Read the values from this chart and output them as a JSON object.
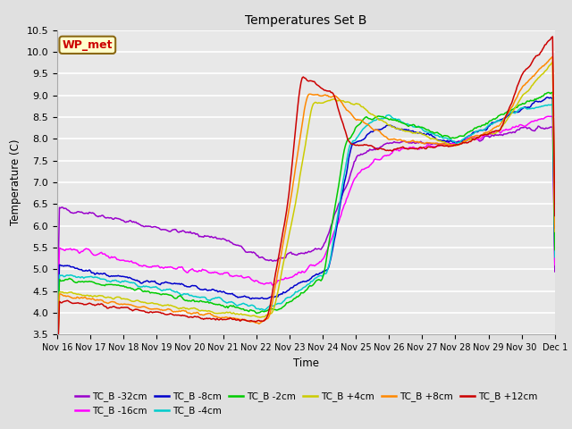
{
  "title": "Temperatures Set B",
  "xlabel": "Time",
  "ylabel": "Temperature (C)",
  "ylim": [
    3.5,
    10.5
  ],
  "yticks": [
    3.5,
    4.0,
    4.5,
    5.0,
    5.5,
    6.0,
    6.5,
    7.0,
    7.5,
    8.0,
    8.5,
    9.0,
    9.5,
    10.0,
    10.5
  ],
  "background_color": "#e0e0e0",
  "plot_bg_color": "#e8e8e8",
  "grid_color": "#ffffff",
  "wp_met_label": "WP_met",
  "wp_met_bg": "#ffffcc",
  "wp_met_border": "#8b6914",
  "wp_met_text": "#cc0000",
  "series": [
    {
      "label": "TC_B -32cm",
      "color": "#9900cc"
    },
    {
      "label": "TC_B -16cm",
      "color": "#ff00ff"
    },
    {
      "label": "TC_B -8cm",
      "color": "#0000cc"
    },
    {
      "label": "TC_B -4cm",
      "color": "#00cccc"
    },
    {
      "label": "TC_B -2cm",
      "color": "#00cc00"
    },
    {
      "label": "TC_B +4cm",
      "color": "#cccc00"
    },
    {
      "label": "TC_B +8cm",
      "color": "#ff8800"
    },
    {
      "label": "TC_B +12cm",
      "color": "#cc0000"
    }
  ],
  "n_points": 450,
  "xtick_labels": [
    "Nov 16",
    "Nov 17",
    "Nov 18",
    "Nov 19",
    "Nov 20",
    "Nov 21",
    "Nov 22",
    "Nov 23",
    "Nov 24",
    "Nov 25",
    "Nov 26",
    "Nov 27",
    "Nov 28",
    "Nov 29",
    "Nov 30",
    "Dec 1"
  ]
}
